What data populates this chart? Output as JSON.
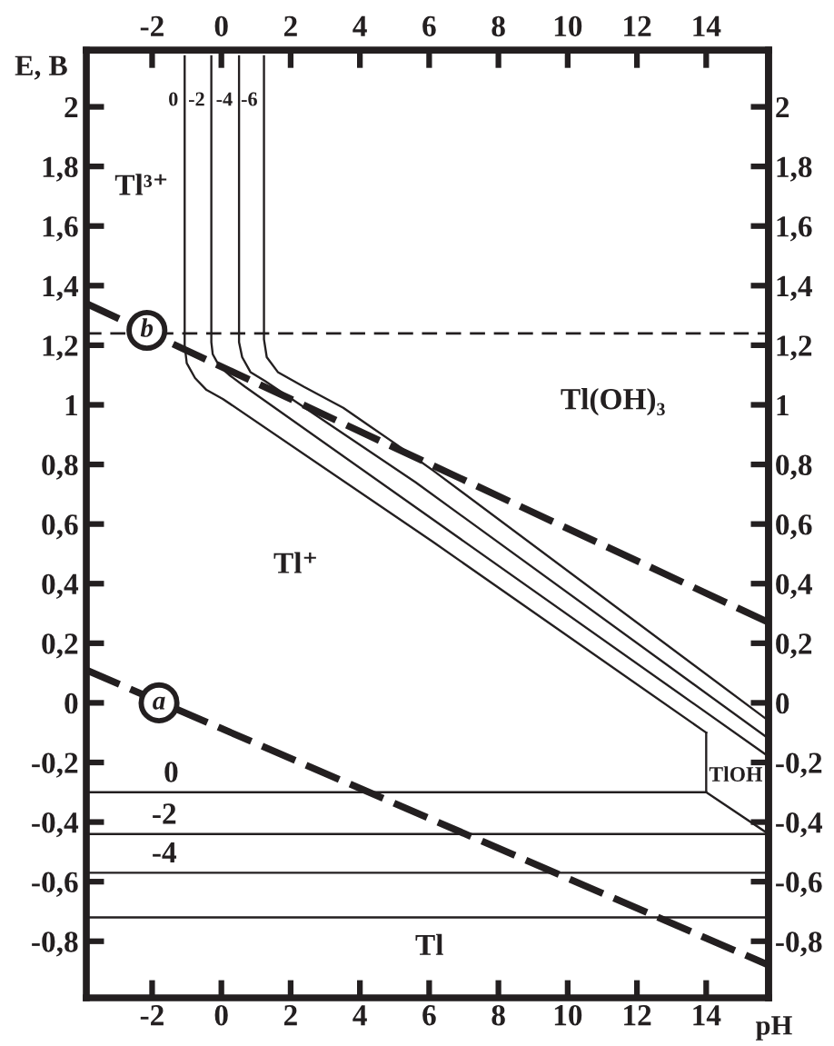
{
  "chart_data": {
    "type": "line",
    "xlabel": "pH",
    "ylabel": "E, B",
    "xlim": [
      -3.9,
      15.8
    ],
    "ylim": [
      -0.99,
      2.19
    ],
    "xticks": [
      -2,
      0,
      2,
      4,
      6,
      8,
      10,
      12,
      14
    ],
    "yticks": [
      {
        "value": -0.8,
        "label": "-0,8"
      },
      {
        "value": -0.6,
        "label": "-0,6"
      },
      {
        "value": -0.4,
        "label": "-0,4"
      },
      {
        "value": -0.2,
        "label": "-0,2"
      },
      0,
      {
        "value": 0.2,
        "label": "0,2"
      },
      {
        "value": 0.4,
        "label": "0,4"
      },
      {
        "value": 0.6,
        "label": "0,6"
      },
      {
        "value": 0.8,
        "label": "0,8"
      },
      1,
      {
        "value": 1.2,
        "label": "1,2"
      },
      {
        "value": 1.4,
        "label": "1,4"
      },
      {
        "value": 1.6,
        "label": "1,6"
      },
      {
        "value": 1.8,
        "label": "1,8"
      },
      2
    ],
    "x2lim": [
      -3.9,
      15.8
    ],
    "x2ticks": [
      -2,
      0,
      2,
      4,
      6,
      8,
      10,
      12,
      14
    ],
    "y2lim": [
      -0.99,
      2.19
    ],
    "y2ticks": [
      {
        "value": -0.8,
        "label": "-0,8"
      },
      {
        "value": -0.6,
        "label": "-0,6"
      },
      {
        "value": -0.4,
        "label": "-0,4"
      },
      {
        "value": -0.2,
        "label": "-0,2"
      },
      0,
      {
        "value": 0.2,
        "label": "0,2"
      },
      {
        "value": 0.4,
        "label": "0,4"
      },
      {
        "value": 0.6,
        "label": "0,6"
      },
      {
        "value": 0.8,
        "label": "0,8"
      },
      1,
      {
        "value": 1.2,
        "label": "1,2"
      },
      {
        "value": 1.4,
        "label": "1,4"
      },
      {
        "value": 1.6,
        "label": "1,6"
      },
      {
        "value": 1.8,
        "label": "1,8"
      },
      2
    ],
    "series": [
      {
        "color": "#231f20",
        "line_style": "solid",
        "x": [
          -1.06,
          -1.06,
          -1.0,
          -0.76,
          -0.43,
          0.04,
          6.11,
          14.0
        ],
        "values": [
          2.17,
          1.2,
          1.14,
          1.09,
          1.05,
          1.02,
          0.54,
          -0.1
        ]
      },
      {
        "color": "#231f20",
        "line_style": "solid",
        "x": [
          -0.29,
          -0.29,
          -0.25,
          -0.06,
          0.23,
          0.69,
          15.8
        ],
        "values": [
          2.17,
          1.21,
          1.17,
          1.13,
          1.1,
          1.06,
          -0.18
        ]
      },
      {
        "color": "#231f20",
        "line_style": "solid",
        "x": [
          0.51,
          0.51,
          0.6,
          0.84,
          1.26,
          5.61,
          15.8
        ],
        "values": [
          2.17,
          1.21,
          1.16,
          1.11,
          1.08,
          0.74,
          -0.12
        ]
      },
      {
        "color": "#231f20",
        "line_style": "solid",
        "x": [
          1.23,
          1.23,
          1.31,
          1.63,
          2.39,
          3.52,
          4.27,
          5.02,
          6.11,
          15.8
        ],
        "values": [
          2.17,
          1.22,
          1.16,
          1.11,
          1.06,
          0.99,
          0.93,
          0.87,
          0.78,
          -0.06
        ]
      },
      {
        "color": "#231f20",
        "line_style": "solid",
        "x": [
          -3.9,
          14.0
        ],
        "values": [
          -0.3,
          -0.3
        ]
      },
      {
        "color": "#231f20",
        "line_style": "solid",
        "x": [
          14.0,
          14.0,
          15.8
        ],
        "values": [
          -0.1,
          -0.3,
          -0.44
        ]
      },
      {
        "color": "#231f20",
        "line_style": "solid",
        "x": [
          -3.9,
          15.8
        ],
        "values": [
          -0.44,
          -0.44
        ]
      },
      {
        "color": "#231f20",
        "line_style": "solid",
        "x": [
          -3.9,
          15.8
        ],
        "values": [
          -0.57,
          -0.57
        ]
      },
      {
        "color": "#231f20",
        "line_style": "solid",
        "x": [
          -3.9,
          15.8
        ],
        "values": [
          -0.72,
          -0.72
        ]
      },
      {
        "color": "#231f20",
        "line_style": "dashed",
        "x": [
          -3.9,
          15.8
        ],
        "values": [
          1.34,
          0.27
        ]
      },
      {
        "color": "#231f20",
        "line_style": "dashed",
        "x": [
          -3.9,
          15.8
        ],
        "values": [
          0.11,
          -0.88
        ]
      }
    ],
    "ref_lines": [
      {
        "axis": "y",
        "value": 1.24,
        "color": "#231f20",
        "line_style": "dashed"
      }
    ],
    "annotations": [
      {
        "text": "0",
        "x": -1.06,
        "y": 2.02
      },
      {
        "text": "-2",
        "x": -0.29,
        "y": 2.02
      },
      {
        "text": "-4",
        "x": 0.51,
        "y": 2.02
      },
      {
        "text": "-6",
        "x": 1.23,
        "y": 2.02
      },
      {
        "text": "b",
        "x": -2.15,
        "y": 1.25
      },
      {
        "text": "a",
        "x": -1.8,
        "y": 0.0
      },
      {
        "text": "0",
        "x": -1.45,
        "y": -0.3
      },
      {
        "text": "-2",
        "x": -1.65,
        "y": -0.44
      },
      {
        "text": "-4",
        "x": -1.65,
        "y": -0.57
      },
      "Tl³⁺",
      "Tl⁺",
      "Tl(OH)₃",
      "TlOH",
      "Tl"
    ]
  }
}
